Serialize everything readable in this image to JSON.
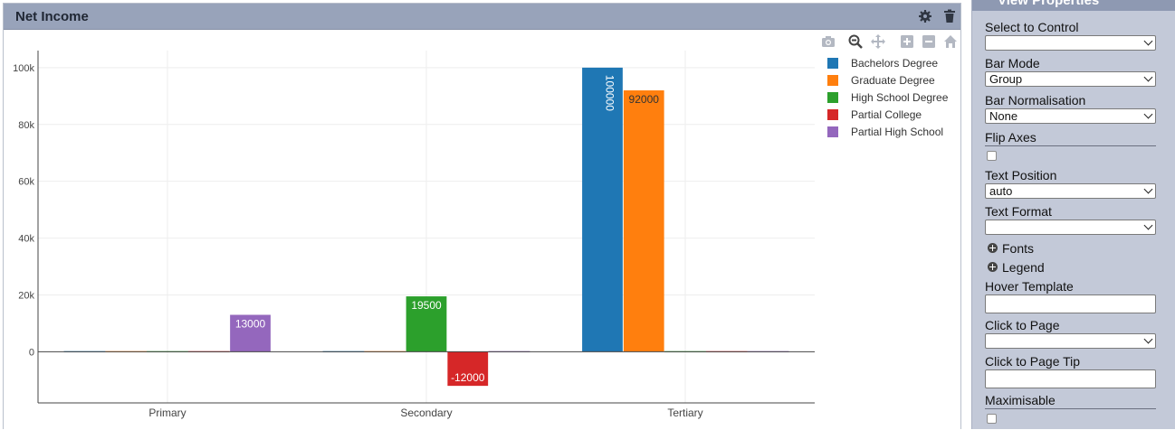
{
  "panel": {
    "title": "Net Income"
  },
  "icons": {
    "settings": "gear-icon",
    "delete": "trash-icon",
    "camera": "camera-icon",
    "zoom": "zoom-icon",
    "pan": "pan-icon",
    "zoom_in": "zoom-in-icon",
    "zoom_out": "zoom-out-icon",
    "reset": "home-icon"
  },
  "chart_data": {
    "type": "bar",
    "barmode": "group",
    "categories": [
      "Primary",
      "Secondary",
      "Tertiary"
    ],
    "series": [
      {
        "name": "Bachelors Degree",
        "color": "#1f77b4",
        "values": [
          0,
          0,
          100000
        ],
        "labels": [
          "",
          "",
          "100000"
        ]
      },
      {
        "name": "Graduate Degree",
        "color": "#ff7f0e",
        "values": [
          0,
          0,
          92000
        ],
        "labels": [
          "",
          "",
          "92000"
        ]
      },
      {
        "name": "High School Degree",
        "color": "#2ca02c",
        "values": [
          0,
          19500,
          0
        ],
        "labels": [
          "",
          "19500",
          ""
        ]
      },
      {
        "name": "Partial College",
        "color": "#d62728",
        "values": [
          0,
          -12000,
          0
        ],
        "labels": [
          "",
          "-12000",
          ""
        ]
      },
      {
        "name": "Partial High School",
        "color": "#9467bd",
        "values": [
          13000,
          0,
          0
        ],
        "labels": [
          "13000",
          "",
          ""
        ]
      }
    ],
    "yticks": [
      0,
      20000,
      40000,
      60000,
      80000,
      100000
    ],
    "ytick_labels": [
      "0",
      "20k",
      "40k",
      "60k",
      "80k",
      "100k"
    ],
    "ylim": [
      -18000,
      106000
    ],
    "grid": true,
    "legend_position": "right"
  },
  "properties": {
    "title": "View Properties",
    "select_to_control": {
      "label": "Select to Control",
      "value": ""
    },
    "bar_mode": {
      "label": "Bar Mode",
      "value": "Group"
    },
    "bar_normalisation": {
      "label": "Bar Normalisation",
      "value": "None"
    },
    "flip_axes": {
      "label": "Flip Axes",
      "checked": false
    },
    "text_position": {
      "label": "Text Position",
      "value": "auto"
    },
    "text_format": {
      "label": "Text Format",
      "value": ""
    },
    "fonts": {
      "label": "Fonts"
    },
    "legend": {
      "label": "Legend"
    },
    "hover_template": {
      "label": "Hover Template",
      "value": ""
    },
    "click_to_page": {
      "label": "Click to Page",
      "value": ""
    },
    "click_to_page_tip": {
      "label": "Click to Page Tip",
      "value": ""
    },
    "maximisable": {
      "label": "Maximisable",
      "checked": false
    }
  }
}
